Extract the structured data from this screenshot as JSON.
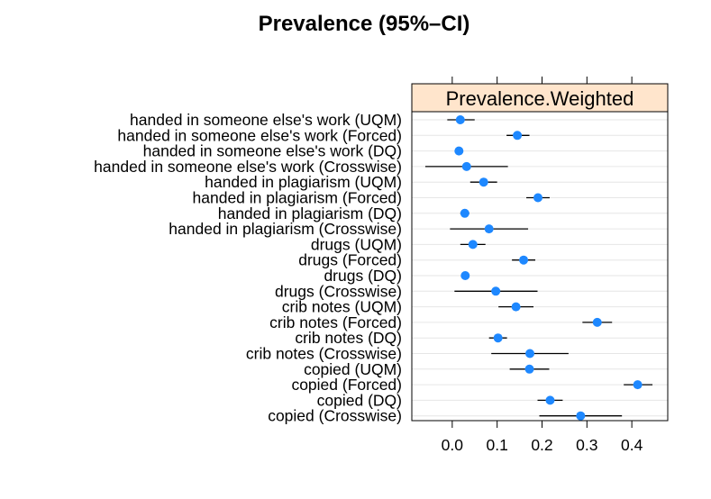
{
  "chart_data": {
    "type": "dotplot",
    "title": "Prevalence (95%–CI)",
    "panel_label": "Prevalence.Weighted",
    "xlabel": "",
    "ylabel": "",
    "xlim": [
      -0.09,
      0.48
    ],
    "x_ticks": [
      0.0,
      0.1,
      0.2,
      0.3,
      0.4
    ],
    "x_tick_labels": [
      "0.0",
      "0.1",
      "0.2",
      "0.3",
      "0.4"
    ],
    "grid": true,
    "colors": {
      "point": "#1E88FF",
      "strip": "#FFE5CC",
      "grid": "#E6E6E6",
      "ci": "#000000"
    },
    "categories": [
      "handed in someone else's work (UQM)",
      "handed in someone else's work (Forced)",
      "handed in someone else's work (DQ)",
      "handed in someone else's work (Crosswise)",
      "handed in plagiarism (UQM)",
      "handed in plagiarism (Forced)",
      "handed in plagiarism (DQ)",
      "handed in plagiarism (Crosswise)",
      "drugs (UQM)",
      "drugs (Forced)",
      "drugs (DQ)",
      "drugs (Crosswise)",
      "crib notes (UQM)",
      "crib notes (Forced)",
      "crib notes (DQ)",
      "crib notes (Crosswise)",
      "copied (UQM)",
      "copied (Forced)",
      "copied (DQ)",
      "copied (Crosswise)"
    ],
    "values": [
      0.018,
      0.145,
      0.015,
      0.032,
      0.07,
      0.191,
      0.028,
      0.082,
      0.046,
      0.159,
      0.029,
      0.097,
      0.142,
      0.323,
      0.102,
      0.173,
      0.172,
      0.413,
      0.218,
      0.286
    ],
    "ci_lower": [
      -0.011,
      0.121,
      0.013,
      -0.06,
      0.04,
      0.165,
      0.018,
      -0.005,
      0.018,
      0.133,
      0.022,
      0.005,
      0.103,
      0.29,
      0.082,
      0.087,
      0.128,
      0.382,
      0.19,
      0.194
    ],
    "ci_upper": [
      0.05,
      0.172,
      0.017,
      0.124,
      0.1,
      0.217,
      0.038,
      0.169,
      0.074,
      0.185,
      0.036,
      0.19,
      0.181,
      0.356,
      0.122,
      0.259,
      0.216,
      0.446,
      0.246,
      0.378
    ]
  }
}
